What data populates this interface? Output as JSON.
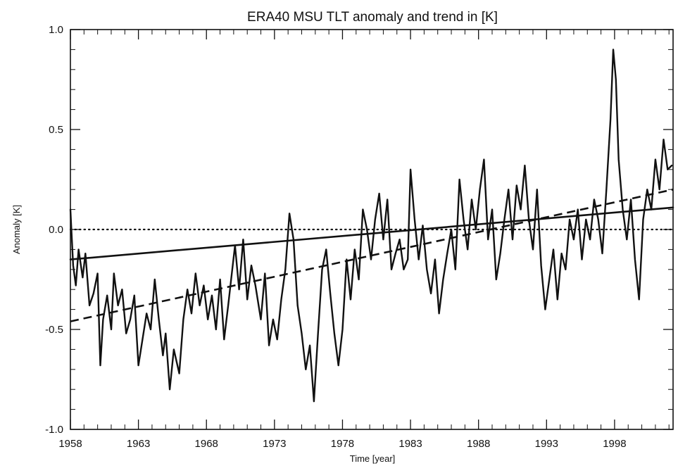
{
  "chart_data": {
    "type": "line",
    "title": "ERA40 MSU TLT anomaly and trend in [K]",
    "xlabel": "Time [year]",
    "ylabel": "Anomaly [K]",
    "xlim": [
      1958,
      2002.3
    ],
    "ylim": [
      -1.0,
      1.0
    ],
    "xticks": [
      1958,
      1963,
      1968,
      1973,
      1978,
      1983,
      1988,
      1993,
      1998
    ],
    "xtick_labels": [
      "1958",
      "1963",
      "1968",
      "1973",
      "1978",
      "1983",
      "1988",
      "1993",
      "1998"
    ],
    "yticks": [
      -1.0,
      -0.5,
      0.0,
      0.5,
      1.0
    ],
    "ytick_labels": [
      "-1.0",
      "-0.5",
      "0.0",
      "0.5",
      "1.0"
    ],
    "grid": false,
    "legend": "none",
    "line_color": "#111111",
    "series": [
      {
        "style": "solid",
        "x": [
          1958.0,
          1958.2,
          1958.4,
          1958.6,
          1958.9,
          1959.1,
          1959.4,
          1959.7,
          1960.0,
          1960.2,
          1960.4,
          1960.7,
          1961.0,
          1961.2,
          1961.5,
          1961.8,
          1962.1,
          1962.4,
          1962.7,
          1963.0,
          1963.3,
          1963.6,
          1963.9,
          1964.2,
          1964.5,
          1964.8,
          1965.0,
          1965.3,
          1965.6,
          1966.0,
          1966.3,
          1966.6,
          1966.9,
          1967.2,
          1967.5,
          1967.8,
          1968.1,
          1968.4,
          1968.7,
          1969.0,
          1969.3,
          1969.6,
          1969.9,
          1970.1,
          1970.4,
          1970.7,
          1971.0,
          1971.3,
          1971.6,
          1972.0,
          1972.3,
          1972.6,
          1972.9,
          1973.2,
          1973.5,
          1973.8,
          1974.1,
          1974.4,
          1974.7,
          1975.0,
          1975.3,
          1975.6,
          1975.9,
          1976.2,
          1976.5,
          1976.8,
          1977.1,
          1977.4,
          1977.7,
          1978.0,
          1978.3,
          1978.6,
          1978.9,
          1979.2,
          1979.5,
          1979.8,
          1980.1,
          1980.4,
          1980.7,
          1981.0,
          1981.3,
          1981.6,
          1981.9,
          1982.2,
          1982.5,
          1982.8,
          1983.0,
          1983.3,
          1983.6,
          1983.9,
          1984.2,
          1984.5,
          1984.8,
          1985.1,
          1985.4,
          1985.7,
          1986.0,
          1986.3,
          1986.6,
          1986.9,
          1987.2,
          1987.5,
          1987.8,
          1988.1,
          1988.4,
          1988.7,
          1989.0,
          1989.3,
          1989.6,
          1989.9,
          1990.2,
          1990.5,
          1990.8,
          1991.1,
          1991.4,
          1991.7,
          1992.0,
          1992.3,
          1992.6,
          1992.9,
          1993.2,
          1993.5,
          1993.8,
          1994.1,
          1994.4,
          1994.7,
          1995.0,
          1995.3,
          1995.6,
          1995.9,
          1996.2,
          1996.5,
          1996.8,
          1997.1,
          1997.4,
          1997.7,
          1997.9,
          1998.1,
          1998.3,
          1998.6,
          1998.9,
          1999.2,
          1999.5,
          1999.8,
          2000.1,
          2000.4,
          2000.7,
          2001.0,
          2001.3,
          2001.6,
          2001.9,
          2002.2
        ],
        "y": [
          0.1,
          -0.18,
          -0.28,
          -0.1,
          -0.24,
          -0.12,
          -0.38,
          -0.32,
          -0.22,
          -0.68,
          -0.45,
          -0.33,
          -0.5,
          -0.22,
          -0.38,
          -0.3,
          -0.52,
          -0.45,
          -0.33,
          -0.68,
          -0.55,
          -0.42,
          -0.5,
          -0.25,
          -0.45,
          -0.63,
          -0.52,
          -0.8,
          -0.6,
          -0.72,
          -0.45,
          -0.3,
          -0.42,
          -0.22,
          -0.38,
          -0.28,
          -0.45,
          -0.33,
          -0.5,
          -0.25,
          -0.55,
          -0.38,
          -0.2,
          -0.08,
          -0.3,
          -0.05,
          -0.35,
          -0.18,
          -0.28,
          -0.45,
          -0.22,
          -0.58,
          -0.45,
          -0.55,
          -0.35,
          -0.2,
          0.08,
          -0.05,
          -0.38,
          -0.52,
          -0.7,
          -0.58,
          -0.86,
          -0.52,
          -0.2,
          -0.1,
          -0.32,
          -0.52,
          -0.68,
          -0.5,
          -0.15,
          -0.35,
          -0.1,
          -0.25,
          0.1,
          0.0,
          -0.15,
          0.05,
          0.18,
          -0.05,
          0.15,
          -0.2,
          -0.12,
          -0.05,
          -0.2,
          -0.15,
          0.3,
          0.05,
          -0.15,
          0.02,
          -0.2,
          -0.32,
          -0.15,
          -0.42,
          -0.25,
          -0.12,
          0.0,
          -0.2,
          0.25,
          0.05,
          -0.1,
          0.15,
          0.0,
          0.2,
          0.35,
          -0.05,
          0.1,
          -0.25,
          -0.12,
          0.05,
          0.2,
          -0.05,
          0.22,
          0.1,
          0.32,
          0.05,
          -0.1,
          0.2,
          -0.18,
          -0.4,
          -0.25,
          -0.1,
          -0.35,
          -0.12,
          -0.2,
          0.05,
          -0.05,
          0.1,
          -0.15,
          0.05,
          -0.05,
          0.15,
          0.05,
          -0.12,
          0.2,
          0.55,
          0.9,
          0.75,
          0.35,
          0.1,
          -0.05,
          0.15,
          -0.15,
          -0.35,
          0.05,
          0.2,
          0.1,
          0.35,
          0.2,
          0.45,
          0.3,
          0.32
        ]
      },
      {
        "style": "solid-trend",
        "x": [
          1958.0,
          2002.3
        ],
        "y": [
          -0.15,
          0.11
        ]
      },
      {
        "style": "dashed-trend",
        "x": [
          1958.0,
          2002.3
        ],
        "y": [
          -0.46,
          0.2
        ]
      },
      {
        "style": "dotted-zero",
        "x": [
          1958.0,
          2002.3
        ],
        "y": [
          0.0,
          0.0
        ]
      }
    ]
  }
}
